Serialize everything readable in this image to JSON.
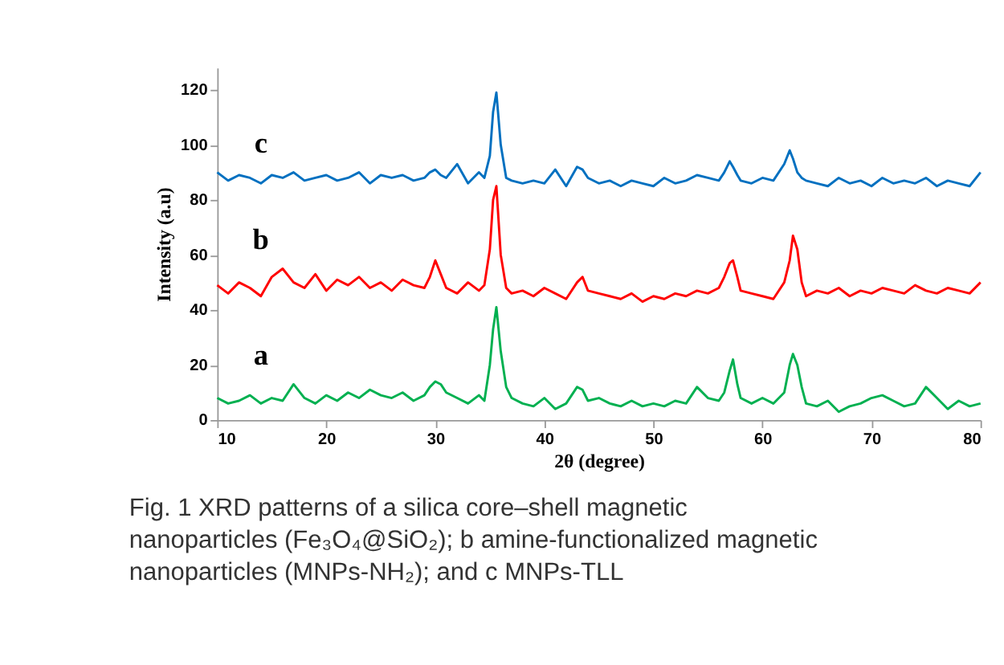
{
  "chart_data": {
    "type": "line",
    "xlabel": "2θ (degree)",
    "ylabel": "Intensity (a.u)",
    "x": [
      10,
      11,
      12,
      13,
      14,
      15,
      16,
      17,
      18,
      19,
      20,
      21,
      22,
      23,
      24,
      25,
      26,
      27,
      28,
      29,
      29.5,
      30,
      30.5,
      31,
      32,
      33,
      34,
      34.5,
      35,
      35.3,
      35.6,
      36,
      36.5,
      37,
      38,
      39,
      40,
      41,
      42,
      43,
      43.5,
      44,
      45,
      46,
      47,
      48,
      49,
      50,
      51,
      52,
      53,
      54,
      55,
      56,
      56.5,
      57,
      57.3,
      57.7,
      58,
      59,
      60,
      61,
      62,
      62.5,
      62.8,
      63.2,
      63.6,
      64,
      65,
      66,
      67,
      68,
      69,
      70,
      71,
      72,
      73,
      74,
      75,
      76,
      77,
      78,
      79,
      80
    ],
    "series": [
      {
        "name": "a",
        "color": "#00b050",
        "values": [
          8,
          6,
          7,
          9,
          6,
          8,
          7,
          13,
          8,
          6,
          9,
          7,
          10,
          8,
          11,
          9,
          8,
          10,
          7,
          9,
          12,
          14,
          13,
          10,
          8,
          6,
          9,
          7,
          20,
          33,
          41,
          25,
          12,
          8,
          6,
          5,
          8,
          4,
          6,
          12,
          11,
          7,
          8,
          6,
          5,
          7,
          5,
          6,
          5,
          7,
          6,
          12,
          8,
          7,
          10,
          18,
          22,
          13,
          8,
          6,
          8,
          6,
          10,
          20,
          24,
          20,
          12,
          6,
          5,
          7,
          3,
          5,
          6,
          8,
          9,
          7,
          5,
          6,
          12,
          8,
          4,
          7,
          5,
          6
        ]
      },
      {
        "name": "b",
        "color": "#ff0000",
        "values": [
          49,
          46,
          50,
          48,
          45,
          52,
          55,
          50,
          48,
          53,
          47,
          51,
          49,
          52,
          48,
          50,
          47,
          51,
          49,
          48,
          52,
          58,
          53,
          48,
          46,
          50,
          47,
          49,
          62,
          80,
          85,
          60,
          48,
          46,
          47,
          45,
          48,
          46,
          44,
          50,
          52,
          47,
          46,
          45,
          44,
          46,
          43,
          45,
          44,
          46,
          45,
          47,
          46,
          48,
          52,
          57,
          58,
          52,
          47,
          46,
          45,
          44,
          50,
          58,
          67,
          62,
          50,
          45,
          47,
          46,
          48,
          45,
          47,
          46,
          48,
          47,
          46,
          49,
          47,
          46,
          48,
          47,
          46,
          50
        ]
      },
      {
        "name": "c",
        "color": "#0070c0",
        "values": [
          90,
          87,
          89,
          88,
          86,
          89,
          88,
          90,
          87,
          88,
          89,
          87,
          88,
          90,
          86,
          89,
          88,
          89,
          87,
          88,
          90,
          91,
          89,
          88,
          93,
          86,
          90,
          88,
          96,
          112,
          119,
          100,
          88,
          87,
          86,
          87,
          86,
          91,
          85,
          92,
          91,
          88,
          86,
          87,
          85,
          87,
          86,
          85,
          88,
          86,
          87,
          89,
          88,
          87,
          90,
          94,
          92,
          89,
          87,
          86,
          88,
          87,
          93,
          98,
          95,
          90,
          88,
          87,
          86,
          85,
          88,
          86,
          87,
          85,
          88,
          86,
          87,
          86,
          88,
          85,
          87,
          86,
          85,
          90
        ]
      }
    ],
    "xlim": [
      10,
      80
    ],
    "ylim": [
      0,
      128
    ],
    "xticks": [
      10,
      20,
      30,
      40,
      50,
      60,
      70,
      80
    ],
    "yticks": [
      0,
      20,
      40,
      60,
      80,
      100,
      120
    ],
    "line_style": "solid",
    "annotations": [
      "Fig. 1  XRD patterns of a silica core–shell magnetic nanoparticles (Fe₃O₄@SiO₂); b amine-functionalized magnetic nanoparticles (MNPs-NH₂); and c MNPs-TLL"
    ]
  }
}
